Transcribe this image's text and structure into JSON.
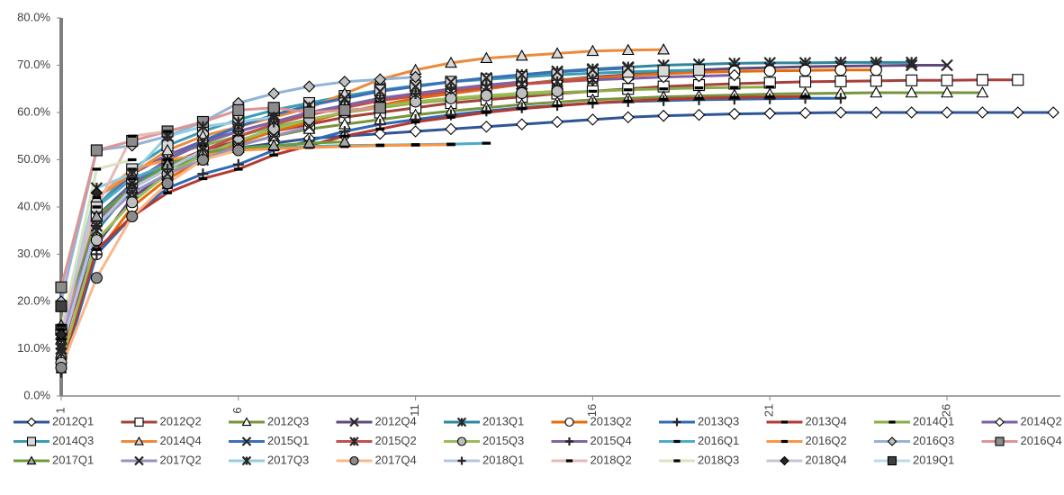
{
  "chart_data": {
    "type": "line",
    "x": [
      1,
      2,
      3,
      4,
      5,
      6,
      7,
      8,
      9,
      10,
      11,
      12,
      13,
      14,
      15,
      16,
      17,
      18,
      19,
      20,
      21,
      22,
      23,
      24,
      25,
      26,
      27,
      28,
      29
    ],
    "xlim": [
      1,
      29.2
    ],
    "xticks": [
      1,
      6,
      11,
      16,
      21,
      26
    ],
    "ylim": [
      0,
      80
    ],
    "yticks": [
      {
        "value": 0,
        "label": "0.0%"
      },
      {
        "value": 10,
        "label": "10.0%"
      },
      {
        "value": 20,
        "label": "20.0%"
      },
      {
        "value": 30,
        "label": "30.0%"
      },
      {
        "value": 40,
        "label": "40.0%"
      },
      {
        "value": 50,
        "label": "50.0%"
      },
      {
        "value": 60,
        "label": "60.0%"
      },
      {
        "value": 70,
        "label": "70.0%"
      },
      {
        "value": 80,
        "label": "80.0%"
      }
    ],
    "grid": false,
    "legend": "bottom",
    "series": [
      {
        "name": "2012Q1",
        "color": "#2f5597",
        "marker": "diamond",
        "marker_fill": "#ffffff",
        "values": [
          12,
          40,
          46,
          49,
          51,
          52.5,
          53.5,
          54.5,
          55,
          55.5,
          56,
          56.5,
          57,
          57.5,
          58,
          58.5,
          59,
          59.3,
          59.5,
          59.7,
          59.8,
          59.9,
          60,
          60,
          60,
          60,
          60,
          60,
          60
        ]
      },
      {
        "name": "2012Q2",
        "color": "#a5403a",
        "marker": "square",
        "marker_fill": "#ffffff",
        "values": [
          14,
          38,
          45,
          49,
          52,
          54,
          56,
          57.5,
          59,
          60,
          61,
          62,
          62.7,
          63.3,
          64,
          64.5,
          65,
          65.5,
          65.8,
          66.1,
          66.3,
          66.5,
          66.6,
          66.7,
          66.8,
          66.8,
          66.9,
          66.9,
          null
        ]
      },
      {
        "name": "2012Q3",
        "color": "#77933c",
        "marker": "triangle",
        "marker_fill": "#ffffff",
        "values": [
          13,
          37,
          44,
          48,
          51,
          53,
          55,
          56.5,
          57.5,
          58.5,
          59.5,
          60.3,
          61,
          61.7,
          62.2,
          62.7,
          63,
          63.3,
          63.5,
          63.7,
          63.9,
          64,
          64.1,
          64.2,
          64.2,
          64.2,
          64.2,
          null,
          null
        ]
      },
      {
        "name": "2012Q4",
        "color": "#604a7b",
        "marker": "x",
        "marker_fill": "#ffffff",
        "values": [
          11,
          32,
          42,
          47,
          51,
          54,
          56.5,
          58.5,
          60,
          61.5,
          63,
          64,
          65,
          66,
          66.8,
          67.5,
          68,
          68.5,
          69,
          69.3,
          69.5,
          69.7,
          69.8,
          69.9,
          70,
          70,
          null,
          null,
          null
        ]
      },
      {
        "name": "2013Q1",
        "color": "#31859c",
        "marker": "asterisk",
        "marker_fill": "#ffffff",
        "values": [
          10,
          35,
          44,
          50,
          54,
          57,
          59.5,
          61.5,
          63,
          64.5,
          65.5,
          66.5,
          67.3,
          68,
          68.7,
          69.2,
          69.6,
          70,
          70.2,
          70.4,
          70.5,
          70.5,
          70.6,
          70.6,
          70.6,
          null,
          null,
          null,
          null
        ]
      },
      {
        "name": "2013Q2",
        "color": "#e46c0a",
        "marker": "circle",
        "marker_fill": "#ffffff",
        "values": [
          8,
          30,
          40,
          46,
          50,
          53.5,
          56,
          58,
          60,
          61.5,
          63,
          64,
          65,
          66,
          66.7,
          67.3,
          67.8,
          68.2,
          68.5,
          68.7,
          68.8,
          68.9,
          69,
          69,
          null,
          null,
          null,
          null,
          null
        ]
      },
      {
        "name": "2013Q3",
        "color": "#2e6ab5",
        "marker": "plus",
        "marker_fill": "#ffffff",
        "values": [
          5,
          30,
          38,
          44,
          47,
          49,
          52,
          54,
          56,
          57.5,
          58.5,
          59.5,
          60.3,
          61,
          61.5,
          62,
          62.3,
          62.5,
          62.7,
          62.8,
          62.9,
          63,
          63,
          null,
          null,
          null,
          null,
          null,
          null
        ]
      },
      {
        "name": "2013Q4",
        "color": "#b23a32",
        "marker": "dash",
        "marker_fill": "#000000",
        "values": [
          6,
          31,
          38,
          43,
          46,
          48,
          51,
          53,
          55,
          56.5,
          58,
          59,
          60,
          60.8,
          61.4,
          62,
          62.4,
          62.8,
          63,
          63.2,
          63.3,
          63.4,
          null,
          null,
          null,
          null,
          null,
          null,
          null
        ]
      },
      {
        "name": "2014Q1",
        "color": "#8aad48",
        "marker": "dash",
        "marker_fill": "#000000",
        "values": [
          12,
          40,
          47,
          51,
          53,
          55,
          57,
          58.5,
          60,
          61,
          62,
          62.7,
          63.3,
          63.8,
          64.2,
          64.5,
          64.8,
          65,
          65.2,
          65.3,
          65.4,
          null,
          null,
          null,
          null,
          null,
          null,
          null,
          null
        ]
      },
      {
        "name": "2014Q2",
        "color": "#7b5ea7",
        "marker": "diamond",
        "marker_fill": "#ffffff",
        "values": [
          13,
          40,
          47,
          51,
          54,
          56,
          58,
          60,
          61.5,
          63,
          64,
          64.8,
          65.5,
          66,
          66.5,
          66.9,
          67.2,
          67.5,
          67.7,
          67.9,
          null,
          null,
          null,
          null,
          null,
          null,
          null,
          null,
          null
        ]
      },
      {
        "name": "2014Q3",
        "color": "#3a9cb3",
        "marker": "square",
        "marker_fill": "#d9d9d9",
        "values": [
          14,
          40,
          48,
          53,
          56,
          58.5,
          60.5,
          62,
          63.5,
          64.7,
          65.7,
          66.5,
          67,
          67.5,
          68,
          68.3,
          68.6,
          68.8,
          69,
          null,
          null,
          null,
          null,
          null,
          null,
          null,
          null,
          null,
          null
        ]
      },
      {
        "name": "2014Q4",
        "color": "#ec8a3c",
        "marker": "triangle",
        "marker_fill": "#d9d9d9",
        "values": [
          12,
          42,
          47,
          52,
          55,
          57,
          59,
          61,
          64,
          67,
          69,
          70.5,
          71.5,
          72,
          72.5,
          73,
          73.2,
          73.3,
          null,
          null,
          null,
          null,
          null,
          null,
          null,
          null,
          null,
          null,
          null
        ]
      },
      {
        "name": "2015Q1",
        "color": "#3d6fb6",
        "marker": "x",
        "marker_fill": "#ffffff",
        "values": [
          10,
          38,
          45,
          50,
          54,
          57,
          59.5,
          61.5,
          63,
          64.5,
          65.5,
          66.5,
          67.3,
          68,
          68.6,
          69,
          69.4,
          null,
          null,
          null,
          null,
          null,
          null,
          null,
          null,
          null,
          null,
          null,
          null
        ]
      },
      {
        "name": "2015Q2",
        "color": "#c0504d",
        "marker": "asterisk",
        "marker_fill": "#ffffff",
        "values": [
          9,
          36,
          44,
          49,
          52,
          55,
          57.5,
          59.5,
          61,
          62.5,
          63.5,
          64.5,
          65.3,
          66,
          66.5,
          67,
          null,
          null,
          null,
          null,
          null,
          null,
          null,
          null,
          null,
          null,
          null,
          null,
          null
        ]
      },
      {
        "name": "2015Q3",
        "color": "#9bbb59",
        "marker": "circle",
        "marker_fill": "#bfbfbf",
        "values": [
          7,
          33,
          41,
          47,
          51,
          54,
          56.5,
          58.5,
          60,
          61.3,
          62.3,
          63,
          63.6,
          64.1,
          64.5,
          null,
          null,
          null,
          null,
          null,
          null,
          null,
          null,
          null,
          null,
          null,
          null,
          null,
          null
        ]
      },
      {
        "name": "2015Q4",
        "color": "#8064a2",
        "marker": "plus",
        "marker_fill": "#ffffff",
        "values": [
          11,
          37,
          45,
          50,
          53.5,
          56,
          58,
          60,
          61.5,
          63,
          64,
          65,
          65.8,
          66.5,
          null,
          null,
          null,
          null,
          null,
          null,
          null,
          null,
          null,
          null,
          null,
          null,
          null,
          null,
          null
        ]
      },
      {
        "name": "2016Q1",
        "color": "#4bacc6",
        "marker": "dash",
        "marker_fill": "#000000",
        "values": [
          13,
          40,
          46,
          49,
          51,
          52,
          52.5,
          52.8,
          53,
          53.1,
          53.2,
          53.3,
          53.5,
          null,
          null,
          null,
          null,
          null,
          null,
          null,
          null,
          null,
          null,
          null,
          null,
          null,
          null,
          null,
          null
        ]
      },
      {
        "name": "2016Q2",
        "color": "#f79646",
        "marker": "dash",
        "marker_fill": "#000000",
        "values": [
          12,
          42,
          48,
          50,
          51,
          52,
          52.3,
          52.6,
          52.8,
          53,
          53.1,
          53.2,
          null,
          null,
          null,
          null,
          null,
          null,
          null,
          null,
          null,
          null,
          null,
          null,
          null,
          null,
          null,
          null,
          null
        ]
      },
      {
        "name": "2016Q3",
        "color": "#95b3d7",
        "marker": "diamond",
        "marker_fill": "#bfbfbf",
        "values": [
          20,
          52,
          53,
          55,
          58,
          62,
          64,
          65.5,
          66.5,
          67,
          67.5,
          null,
          null,
          null,
          null,
          null,
          null,
          null,
          null,
          null,
          null,
          null,
          null,
          null,
          null,
          null,
          null,
          null,
          null
        ]
      },
      {
        "name": "2016Q4",
        "color": "#d99694",
        "marker": "square",
        "marker_fill": "#8c8c8c",
        "values": [
          23,
          52,
          54,
          56,
          58,
          60.5,
          61,
          60,
          60.5,
          61,
          null,
          null,
          null,
          null,
          null,
          null,
          null,
          null,
          null,
          null,
          null,
          null,
          null,
          null,
          null,
          null,
          null,
          null,
          null
        ]
      },
      {
        "name": "2017Q1",
        "color": "#6f9a3a",
        "marker": "triangle",
        "marker_fill": "#a6a6a6",
        "values": [
          15,
          38,
          44,
          49,
          51.5,
          52.5,
          53,
          53.5,
          53.8,
          null,
          null,
          null,
          null,
          null,
          null,
          null,
          null,
          null,
          null,
          null,
          null,
          null,
          null,
          null,
          null,
          null,
          null,
          null,
          null
        ]
      },
      {
        "name": "2017Q2",
        "color": "#9a8fbf",
        "marker": "x",
        "marker_fill": "#ffffff",
        "values": [
          12,
          36,
          43,
          47,
          50,
          53,
          55,
          57,
          null,
          null,
          null,
          null,
          null,
          null,
          null,
          null,
          null,
          null,
          null,
          null,
          null,
          null,
          null,
          null,
          null,
          null,
          null,
          null,
          null
        ]
      },
      {
        "name": "2017Q3",
        "color": "#93cddd",
        "marker": "asterisk",
        "marker_fill": "#ffffff",
        "values": [
          14,
          44,
          47,
          55,
          57,
          58,
          59,
          null,
          null,
          null,
          null,
          null,
          null,
          null,
          null,
          null,
          null,
          null,
          null,
          null,
          null,
          null,
          null,
          null,
          null,
          null,
          null,
          null,
          null
        ]
      },
      {
        "name": "2017Q4",
        "color": "#fab88a",
        "marker": "circle",
        "marker_fill": "#8c8c8c",
        "values": [
          6,
          25,
          38,
          45,
          50,
          52,
          null,
          null,
          null,
          null,
          null,
          null,
          null,
          null,
          null,
          null,
          null,
          null,
          null,
          null,
          null,
          null,
          null,
          null,
          null,
          null,
          null,
          null,
          null
        ]
      },
      {
        "name": "2018Q1",
        "color": "#b3c5e0",
        "marker": "plus",
        "marker_fill": "#8c8c8c",
        "values": [
          10,
          36,
          44,
          48,
          52,
          null,
          null,
          null,
          null,
          null,
          null,
          null,
          null,
          null,
          null,
          null,
          null,
          null,
          null,
          null,
          null,
          null,
          null,
          null,
          null,
          null,
          null,
          null,
          null
        ]
      },
      {
        "name": "2018Q2",
        "color": "#e6b9b8",
        "marker": "dash",
        "marker_fill": "#000000",
        "values": [
          15,
          40,
          55,
          56,
          null,
          null,
          null,
          null,
          null,
          null,
          null,
          null,
          null,
          null,
          null,
          null,
          null,
          null,
          null,
          null,
          null,
          null,
          null,
          null,
          null,
          null,
          null,
          null,
          null
        ]
      },
      {
        "name": "2018Q3",
        "color": "#d7e4bc",
        "marker": "dash",
        "marker_fill": "#000000",
        "values": [
          14,
          48,
          50,
          null,
          null,
          null,
          null,
          null,
          null,
          null,
          null,
          null,
          null,
          null,
          null,
          null,
          null,
          null,
          null,
          null,
          null,
          null,
          null,
          null,
          null,
          null,
          null,
          null,
          null
        ]
      },
      {
        "name": "2018Q4",
        "color": "#ccc1da",
        "marker": "diamond",
        "marker_fill": "#262626",
        "values": [
          13,
          43,
          null,
          null,
          null,
          null,
          null,
          null,
          null,
          null,
          null,
          null,
          null,
          null,
          null,
          null,
          null,
          null,
          null,
          null,
          null,
          null,
          null,
          null,
          null,
          null,
          null,
          null,
          null
        ]
      },
      {
        "name": "2019Q1",
        "color": "#b7dee8",
        "marker": "square",
        "marker_fill": "#404040",
        "values": [
          19,
          null,
          null,
          null,
          null,
          null,
          null,
          null,
          null,
          null,
          null,
          null,
          null,
          null,
          null,
          null,
          null,
          null,
          null,
          null,
          null,
          null,
          null,
          null,
          null,
          null,
          null,
          null,
          null
        ]
      }
    ]
  }
}
